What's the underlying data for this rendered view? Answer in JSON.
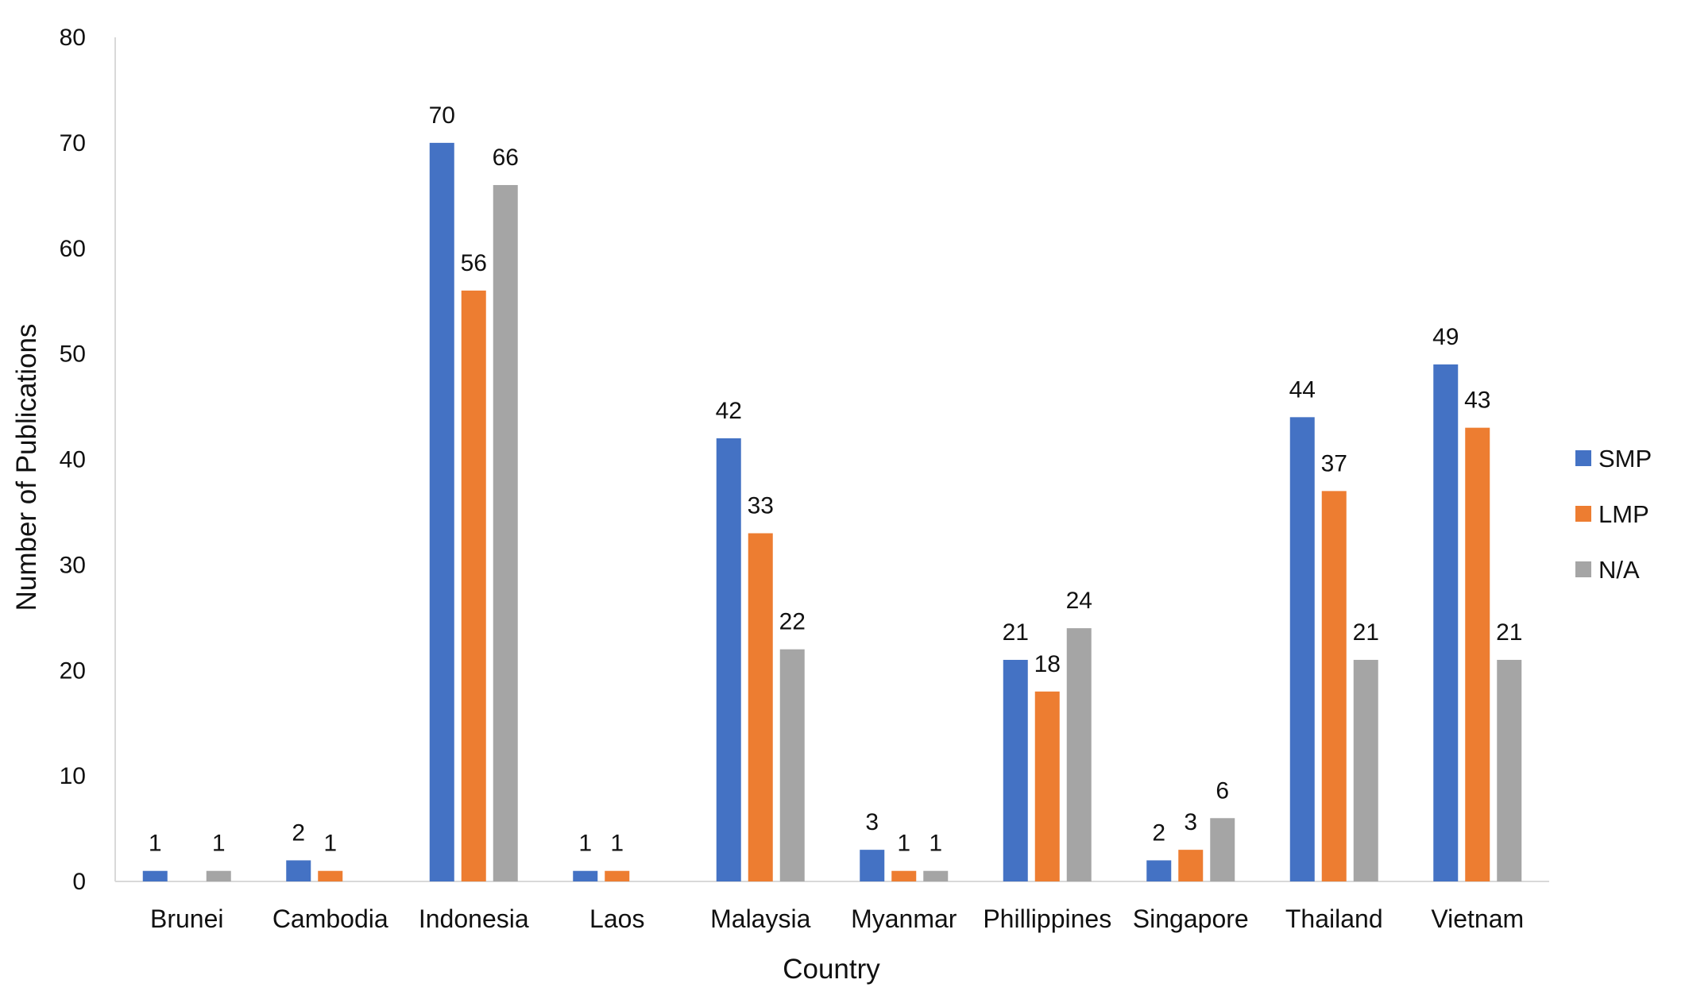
{
  "chart_data": {
    "type": "bar",
    "title": "",
    "xlabel": "Country",
    "ylabel": "Number of Publications",
    "ylim": [
      0,
      80
    ],
    "yticks": [
      0,
      10,
      20,
      30,
      40,
      50,
      60,
      70,
      80
    ],
    "grid": false,
    "legend_position": "right",
    "categories": [
      "Brunei",
      "Cambodia",
      "Indonesia",
      "Laos",
      "Malaysia",
      "Myanmar",
      "Phillippines",
      "Singapore",
      "Thailand",
      "Vietnam"
    ],
    "series": [
      {
        "name": "SMP",
        "color": "#4472C4",
        "values": [
          1,
          2,
          70,
          1,
          42,
          3,
          21,
          2,
          44,
          49
        ]
      },
      {
        "name": "LMP",
        "color": "#ED7D31",
        "values": [
          0,
          1,
          56,
          1,
          33,
          1,
          18,
          3,
          37,
          43
        ]
      },
      {
        "name": "N/A",
        "color": "#A5A5A5",
        "values": [
          1,
          0,
          66,
          0,
          22,
          1,
          24,
          6,
          21,
          21
        ]
      }
    ],
    "data_labels_shown": [
      [
        true,
        true,
        true,
        true,
        true,
        true,
        true,
        true,
        true,
        true
      ],
      [
        false,
        true,
        true,
        true,
        true,
        true,
        true,
        true,
        true,
        true
      ],
      [
        true,
        false,
        true,
        false,
        true,
        true,
        true,
        true,
        true,
        true
      ]
    ]
  }
}
